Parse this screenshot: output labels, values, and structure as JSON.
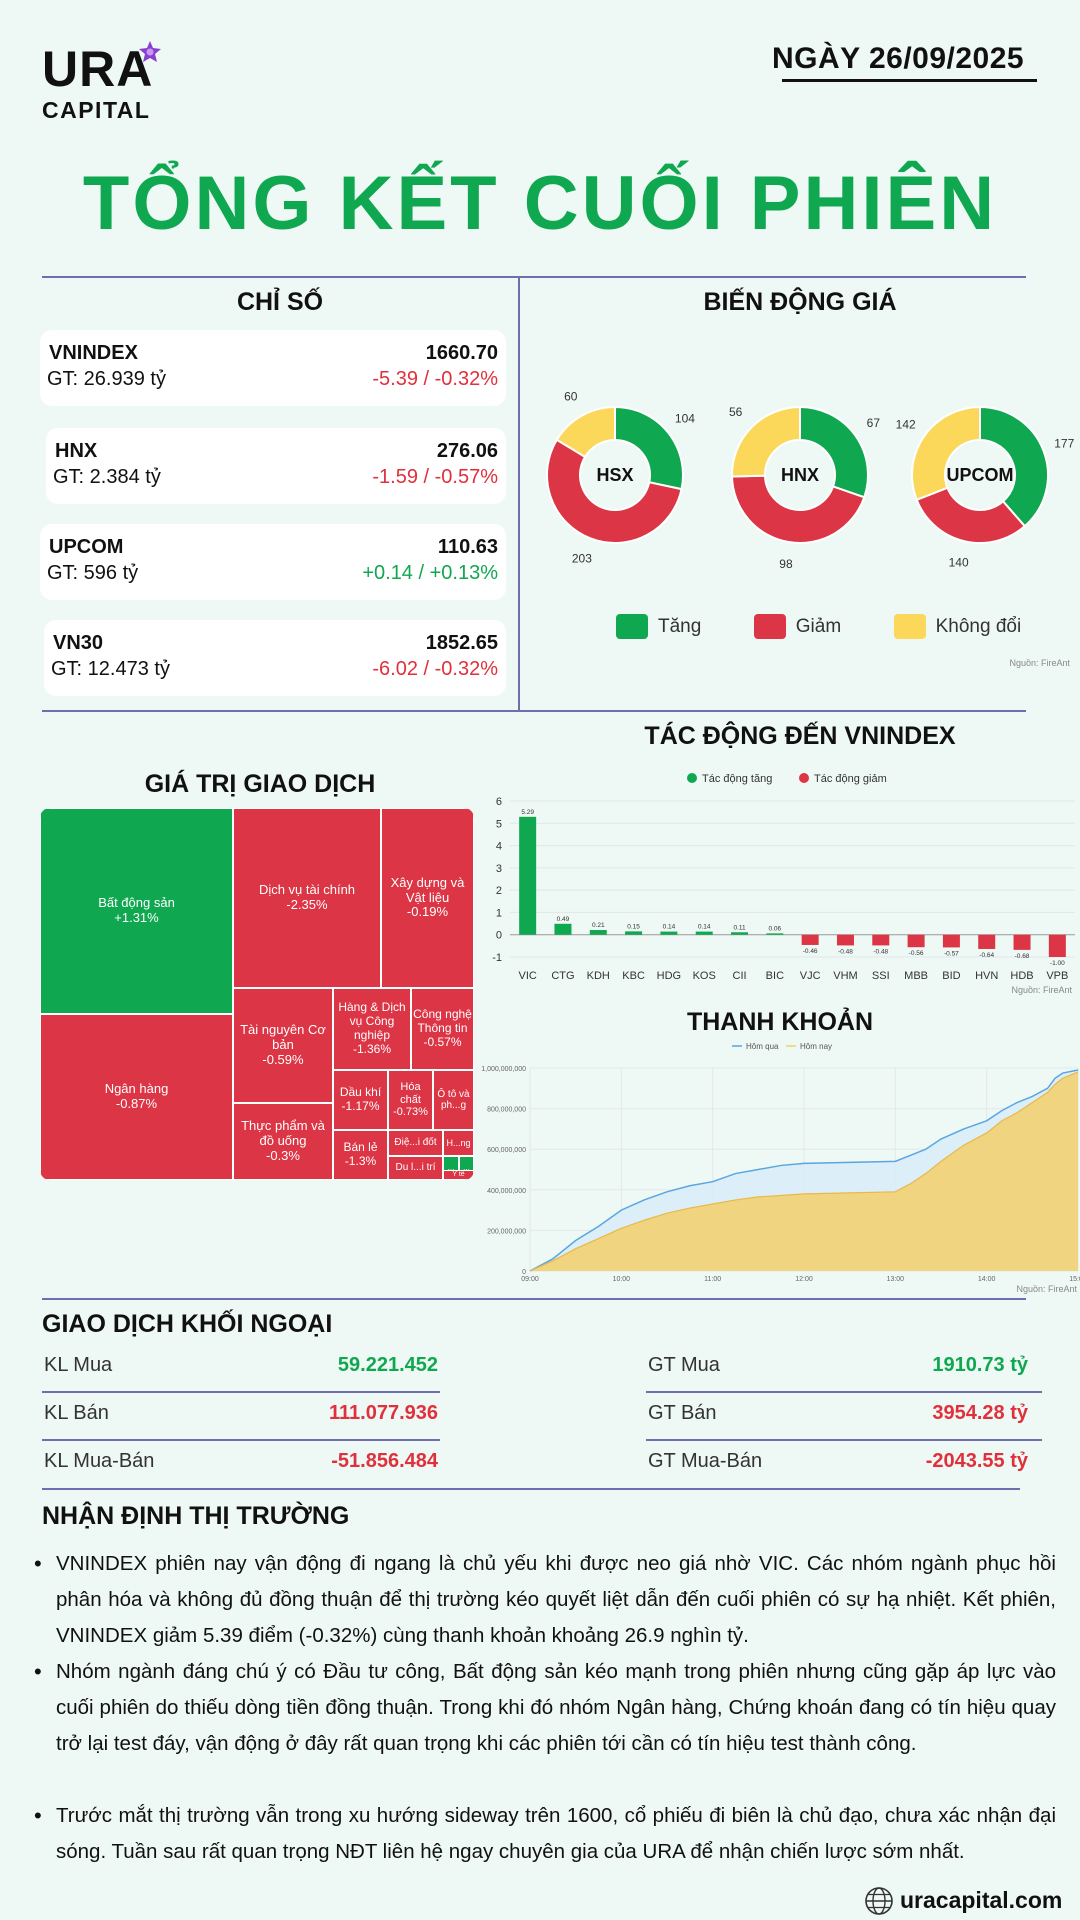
{
  "header": {
    "brand": "URA",
    "brand_sub": "CAPITAL",
    "date": "NGÀY 26/09/2025",
    "title": "TỔNG KẾT CUỐI PHIÊN"
  },
  "indices": {
    "title": "CHỈ SỐ",
    "items": [
      {
        "name": "VNINDEX",
        "gt": "GT: 26.939 tỷ",
        "price": "1660.70",
        "change": "-5.39 / -0.32%",
        "dir": "neg"
      },
      {
        "name": "HNX",
        "gt": "GT: 2.384 tỷ",
        "price": "276.06",
        "change": "-1.59 / -0.57%",
        "dir": "neg"
      },
      {
        "name": "UPCOM",
        "gt": "GT: 596 tỷ",
        "price": "110.63",
        "change": "+0.14 / +0.13%",
        "dir": "pos"
      },
      {
        "name": "VN30",
        "gt": "GT: 12.473 tỷ",
        "price": "1852.65",
        "change": "-6.02 / -0.32%",
        "dir": "neg"
      }
    ]
  },
  "breadth": {
    "title": "BIẾN ĐỘNG GIÁ",
    "source": "Nguồn: FireAnt",
    "legend": {
      "up": "Tăng",
      "down": "Giảm",
      "flat": "Không đổi"
    },
    "colors": {
      "up": "#0fa850",
      "down": "#dc3545",
      "flat": "#fbd85a"
    }
  },
  "transaction_value": {
    "title": "GIÁ TRỊ GIAO DỊCH",
    "sectors": [
      {
        "name": "Bất động sản",
        "change": "+1.31%"
      },
      {
        "name": "Ngân hàng",
        "change": "-0.87%"
      },
      {
        "name": "Dịch vụ tài chính",
        "change": "-2.35%"
      },
      {
        "name": "Xây dựng và Vật liệu",
        "change": "-0.19%"
      },
      {
        "name": "Tài nguyên Cơ bản",
        "change": "-0.59%"
      },
      {
        "name": "Hàng & Dịch vụ Công nghiệp",
        "change": "-1.36%"
      },
      {
        "name": "Công nghệ Thông tin",
        "change": "-0.57%"
      },
      {
        "name": "Thực phẩm và đồ uống",
        "change": "-0.3%"
      },
      {
        "name": "Dầu khí",
        "change": "-1.17%"
      },
      {
        "name": "Hóa chất",
        "change": "-0.73%"
      },
      {
        "name": "Ô tô và ph...g",
        "change": ""
      },
      {
        "name": "Bán lẻ",
        "change": "-1.3%"
      },
      {
        "name": "Điệ...i đốt",
        "change": ""
      },
      {
        "name": "H...ng",
        "change": ""
      },
      {
        "name": "Du l...i trí",
        "change": ""
      },
      {
        "name": "...",
        "change": ""
      },
      {
        "name": "...",
        "change": ""
      },
      {
        "name": "Y tế",
        "change": ""
      }
    ]
  },
  "impact": {
    "title": "TÁC ĐỘNG ĐẾN VNINDEX",
    "legend_up": "Tác động tăng",
    "legend_down": "Tác động giảm",
    "source": "Nguồn: FireAnt"
  },
  "liquidity": {
    "title": "THANH KHOẢN",
    "legend_prev": "Hôm qua",
    "legend_today": "Hôm nay",
    "source": "Nguồn: FireAnt"
  },
  "chart_data": [
    {
      "type": "pie",
      "variant": "donut",
      "label": "HSX",
      "categories": [
        "Tăng",
        "Giảm",
        "Không đổi"
      ],
      "values": [
        104,
        203,
        60
      ]
    },
    {
      "type": "pie",
      "variant": "donut",
      "label": "HNX",
      "categories": [
        "Tăng",
        "Giảm",
        "Không đổi"
      ],
      "values": [
        67,
        98,
        56
      ]
    },
    {
      "type": "pie",
      "variant": "donut",
      "label": "UPCOM",
      "categories": [
        "Tăng",
        "Giảm",
        "Không đổi"
      ],
      "values": [
        177,
        140,
        142
      ]
    },
    {
      "type": "bar",
      "title": "TÁC ĐỘNG ĐẾN VNINDEX",
      "categories": [
        "VIC",
        "CTG",
        "KDH",
        "KBC",
        "HDG",
        "KOS",
        "CII",
        "BIC",
        "VJC",
        "VHM",
        "SSI",
        "MBB",
        "BID",
        "HVN",
        "HDB",
        "VPB"
      ],
      "values": [
        5.29,
        0.49,
        0.21,
        0.15,
        0.14,
        0.14,
        0.11,
        0.06,
        -0.46,
        -0.48,
        -0.48,
        -0.56,
        -0.57,
        -0.64,
        -0.68,
        -1.0
      ],
      "value_labels": [
        "5.29",
        "0.49",
        "0.21",
        "0.15",
        "0.14",
        "0.14",
        "0.11",
        "0.06",
        "-0.46",
        "-0.48",
        "-0.48",
        "-0.56",
        "-0.57",
        "-0.64",
        "-0.68",
        "-1.00"
      ],
      "ylim": [
        -1,
        6
      ],
      "yticks": [
        "-1",
        "0",
        "1",
        "2",
        "3",
        "4",
        "5",
        "6"
      ],
      "series": [
        {
          "name": "Tác động tăng",
          "color": "#0fa850"
        },
        {
          "name": "Tác động giảm",
          "color": "#dc3545"
        }
      ]
    },
    {
      "type": "area",
      "title": "THANH KHOẢN",
      "xticks": [
        "09:00",
        "10:00",
        "11:00",
        "12:00",
        "13:00",
        "14:00",
        "15:00"
      ],
      "yticks": [
        "0",
        "200,000,000",
        "400,000,000",
        "600,000,000",
        "800,000,000",
        "1,000,000,000"
      ],
      "ylim": [
        0,
        1000000000
      ],
      "series": [
        {
          "name": "Hôm qua",
          "color": "#5aa6e0",
          "x": [
            "09:00",
            "09:15",
            "09:30",
            "09:45",
            "10:00",
            "10:15",
            "10:30",
            "10:45",
            "11:00",
            "11:15",
            "11:30",
            "11:45",
            "12:00",
            "12:30",
            "13:00",
            "13:10",
            "13:20",
            "13:30",
            "13:45",
            "14:00",
            "14:10",
            "14:20",
            "14:30",
            "14:40",
            "14:45",
            "14:50",
            "15:00"
          ],
          "y": [
            0,
            60000000,
            150000000,
            220000000,
            300000000,
            350000000,
            390000000,
            420000000,
            440000000,
            480000000,
            500000000,
            520000000,
            530000000,
            535000000,
            540000000,
            570000000,
            600000000,
            650000000,
            700000000,
            740000000,
            790000000,
            830000000,
            860000000,
            900000000,
            950000000,
            975000000,
            990000000
          ]
        },
        {
          "name": "Hôm nay",
          "color": "#f5cf6b",
          "x": [
            "09:00",
            "09:15",
            "09:30",
            "09:45",
            "10:00",
            "10:15",
            "10:30",
            "10:45",
            "11:00",
            "11:15",
            "11:30",
            "11:45",
            "12:00",
            "12:30",
            "13:00",
            "13:10",
            "13:20",
            "13:30",
            "13:45",
            "14:00",
            "14:10",
            "14:20",
            "14:30",
            "14:40",
            "14:45",
            "14:50",
            "15:00"
          ],
          "y": [
            0,
            50000000,
            110000000,
            160000000,
            210000000,
            250000000,
            285000000,
            310000000,
            330000000,
            350000000,
            365000000,
            372000000,
            380000000,
            385000000,
            390000000,
            430000000,
            480000000,
            540000000,
            620000000,
            680000000,
            740000000,
            780000000,
            830000000,
            880000000,
            920000000,
            950000000,
            980000000
          ]
        }
      ]
    }
  ],
  "foreign": {
    "title": "GIAO DỊCH KHỐI NGOẠI",
    "left": [
      {
        "label": "KL Mua",
        "value": "59.221.452",
        "dir": "pos"
      },
      {
        "label": "KL Bán",
        "value": "111.077.936",
        "dir": "neg"
      },
      {
        "label": "KL Mua-Bán",
        "value": "-51.856.484",
        "dir": "neg"
      }
    ],
    "right": [
      {
        "label": "GT Mua",
        "value": "1910.73 tỷ",
        "dir": "pos"
      },
      {
        "label": "GT Bán",
        "value": "3954.28 tỷ",
        "dir": "neg"
      },
      {
        "label": "GT Mua-Bán",
        "value": "-2043.55 tỷ",
        "dir": "neg"
      }
    ]
  },
  "outlook": {
    "title": "NHẬN ĐỊNH THỊ TRƯỜNG",
    "bullets": [
      "VNINDEX phiên nay vận động đi ngang là chủ yếu khi được neo giá nhờ VIC. Các nhóm ngành phục hồi phân hóa và không đủ đồng thuận để thị trường kéo quyết liệt dẫn đến cuối phiên có sự hạ nhiệt. Kết phiên, VNINDEX giảm 5.39 điểm (-0.32%) cùng thanh khoản khoảng 26.9 nghìn tỷ.",
      "Nhóm ngành đáng chú ý có Đầu tư công, Bất động sản kéo mạnh trong phiên nhưng cũng gặp áp lực vào cuối phiên do thiếu dòng tiền đồng thuận. Trong khi đó nhóm Ngân hàng, Chứng khoán đang có tín hiệu quay trở lại test đáy, vận động ở đây rất quan trọng khi các phiên tới cần có tín hiệu test thành công.",
      "Trước mắt thị trường vẫn trong xu hướng sideway trên 1600, cổ phiếu đi biên là chủ đạo, chưa xác nhận đại sóng. Tuần sau rất quan trọng NĐT liên hệ ngay chuyên gia của URA để nhận chiến lược sớm nhất."
    ]
  },
  "footer": {
    "website": "uracapital.com"
  }
}
